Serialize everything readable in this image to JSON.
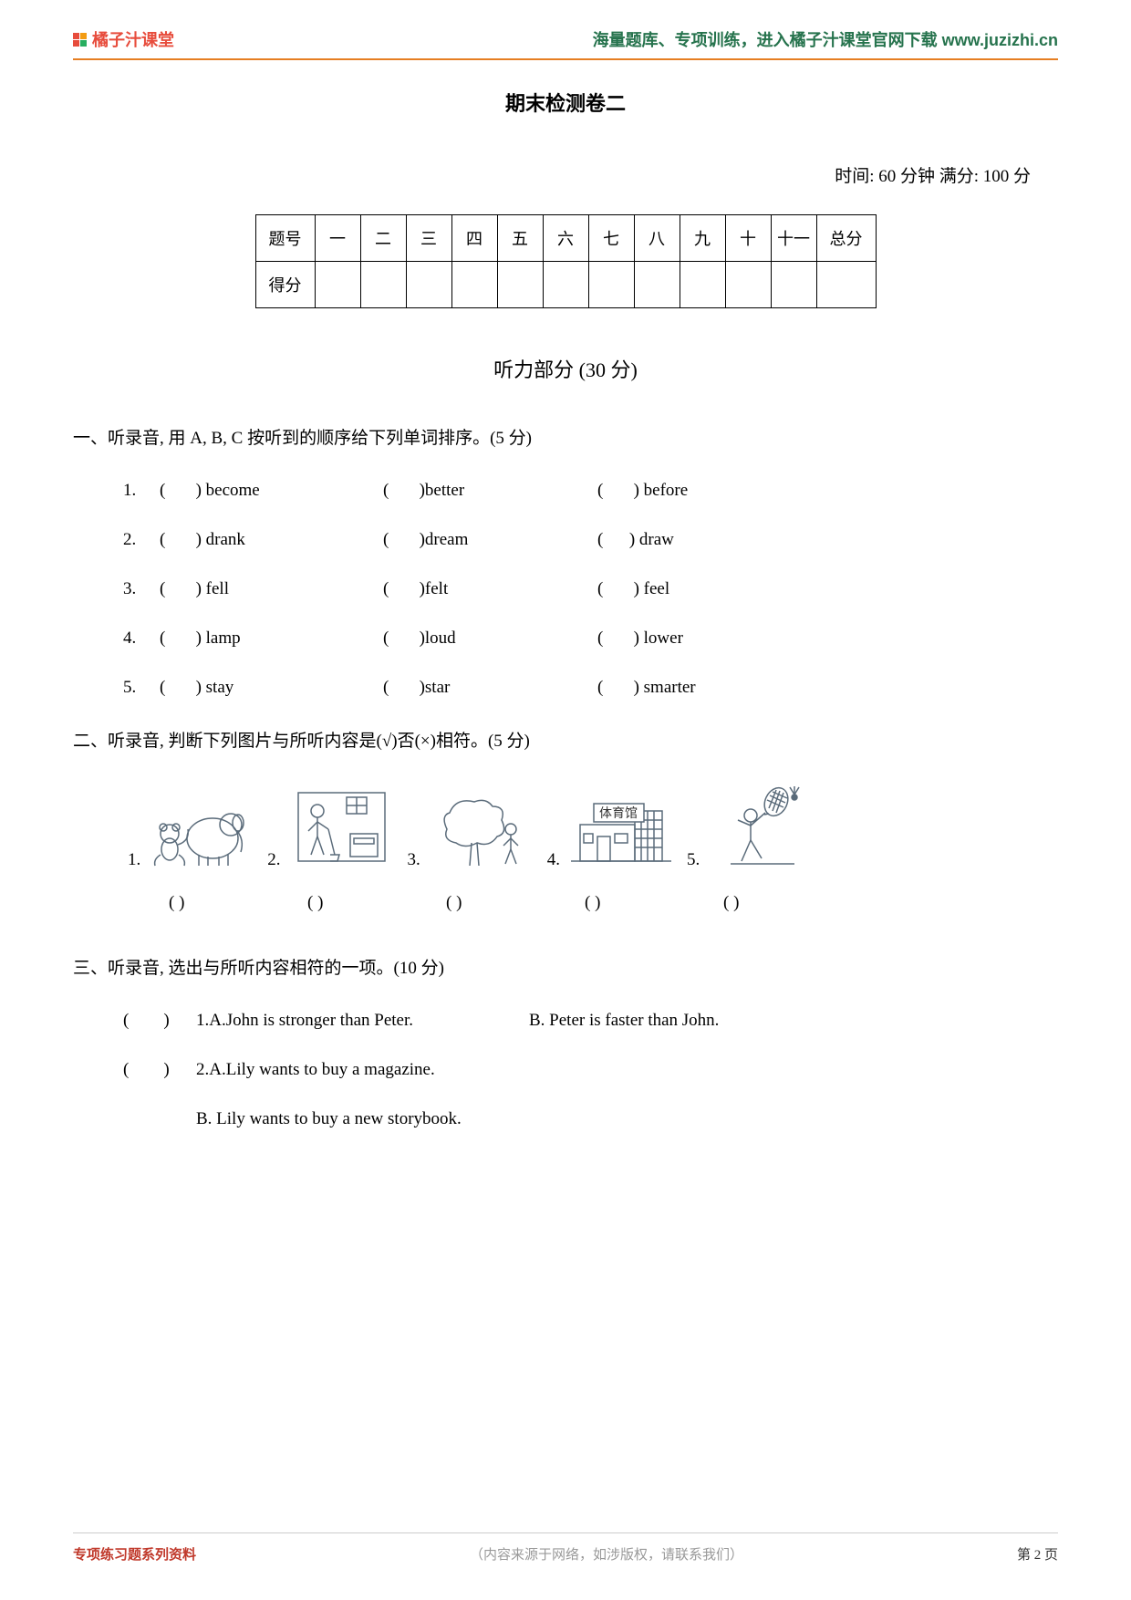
{
  "brand_text": "橘子汁课堂",
  "header_link": "海量题库、专项训练，进入橘子汁课堂官网下载 www.juzizhi.cn",
  "title": "期末检测卷二",
  "time_score": "时间: 60 分钟   满分: 100 分",
  "score_table": {
    "row1_label": "题号",
    "columns": [
      "一",
      "二",
      "三",
      "四",
      "五",
      "六",
      "七",
      "八",
      "九",
      "十",
      "十一",
      "总分"
    ],
    "row2_label": "得分"
  },
  "section_title": "听力部分 (30 分)",
  "q1": {
    "heading": "一、听录音, 用 A, B, C 按听到的顺序给下列单词排序。(5 分)",
    "rows": [
      {
        "num": "1.",
        "w1": "become",
        "w2": "better",
        "w3": "before"
      },
      {
        "num": "2.",
        "w1": "drank",
        "w2": "dream",
        "w3": " draw"
      },
      {
        "num": "3.",
        "w1": "fell",
        "w2": "felt",
        "w3": "feel"
      },
      {
        "num": "4.",
        "w1": "lamp",
        "w2": "loud",
        "w3": "lower"
      },
      {
        "num": "5.",
        "w1": "stay",
        "w2": "star",
        "w3": "smarter"
      }
    ]
  },
  "q2": {
    "heading": "二、听录音, 判断下列图片与所听内容是(√)否(×)相符。(5 分)",
    "items": [
      "1.",
      "2.",
      "3.",
      "4.",
      "5."
    ],
    "parens": [
      "(      )",
      "(      )",
      "(      )",
      "(      )",
      "(      )"
    ],
    "img4_label": "体育馆"
  },
  "q3": {
    "heading": "三、听录音, 选出与所听内容相符的一项。(10 分)",
    "items": [
      {
        "paren": "(        )",
        "num": "1.",
        "a": "A.John is stronger than Peter.",
        "b": "B. Peter is faster than John."
      },
      {
        "paren": "(        )",
        "num": "2.",
        "a": "A.Lily wants to buy a magazine.",
        "b": "B. Lily wants to buy a new storybook."
      }
    ]
  },
  "footer": {
    "left": "专项练习题系列资料",
    "center": "（内容来源于网络，如涉版权，请联系我们）",
    "right_prefix": "第 ",
    "right_num": "2",
    "right_suffix": " 页"
  },
  "colors": {
    "brand_text": "#e74c3c",
    "header_link": "#26734d",
    "header_rule": "#e67e22",
    "footer_left": "#c0392b",
    "footer_center": "#999999",
    "svg_stroke": "#5a6b7a"
  }
}
